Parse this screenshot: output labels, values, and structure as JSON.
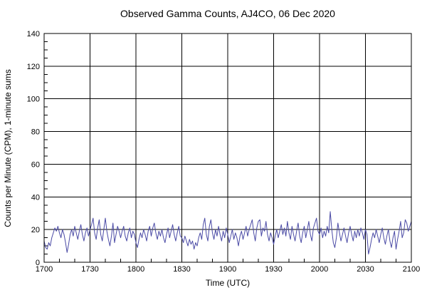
{
  "title": "Observed Gamma Counts, AJ4CO, 06 Dec 2020",
  "colors": {
    "background": "#ffffff",
    "line": "#4a4aa5",
    "grid": "#000000",
    "text": "#000000"
  },
  "chart_data": {
    "type": "line",
    "title": "Observed Gamma Counts, AJ4CO, 06 Dec 2020",
    "xlabel": "Time (UTC)",
    "ylabel": "Counts per Minute (CPM), 1-minute sums",
    "legend_position": "none",
    "grid": true,
    "line_color": "#4a4aa5",
    "grid_color": "#000000",
    "ylim": [
      0,
      140
    ],
    "y_ticks": [
      0,
      20,
      40,
      60,
      80,
      100,
      120,
      140
    ],
    "y_minor_step": 5,
    "xlim_minutes": [
      0,
      240
    ],
    "x_major_step_min": 30,
    "x_minor_step_min": 10,
    "x_tick_labels": [
      "1700",
      "1730",
      "1800",
      "1830",
      "1900",
      "1930",
      "2000",
      "2030",
      "2100"
    ],
    "series": [
      {
        "name": "gamma_counts_cpm",
        "start_time_utc": "1700",
        "step_minutes": 1,
        "values": [
          13,
          9,
          8,
          12,
          10,
          15,
          18,
          21,
          19,
          22,
          18,
          15,
          20,
          17,
          12,
          6,
          11,
          17,
          20,
          16,
          22,
          18,
          14,
          19,
          23,
          17,
          13,
          18,
          21,
          16,
          20,
          23,
          27,
          18,
          14,
          21,
          26,
          17,
          13,
          20,
          27,
          19,
          14,
          10,
          16,
          24,
          12,
          17,
          22,
          19,
          15,
          19,
          22,
          16,
          13,
          18,
          21,
          15,
          19,
          17,
          12,
          9,
          14,
          18,
          15,
          20,
          17,
          13,
          19,
          22,
          16,
          21,
          24,
          18,
          14,
          19,
          16,
          20,
          15,
          12,
          17,
          21,
          15,
          19,
          23,
          17,
          13,
          18,
          22,
          16,
          15,
          12,
          16,
          13,
          10,
          14,
          11,
          13,
          8,
          12,
          10,
          15,
          18,
          14,
          23,
          27,
          17,
          13,
          22,
          26,
          18,
          14,
          20,
          16,
          22,
          17,
          13,
          19,
          15,
          21,
          17,
          12,
          16,
          20,
          14,
          18,
          15,
          10,
          16,
          19,
          14,
          18,
          22,
          16,
          20,
          23,
          26,
          18,
          13,
          21,
          25,
          26,
          16,
          21,
          19,
          25,
          17,
          13,
          18,
          15,
          11,
          16,
          20,
          15,
          19,
          23,
          17,
          21,
          16,
          25,
          18,
          14,
          22,
          17,
          13,
          19,
          24,
          16,
          12,
          18,
          22,
          15,
          20,
          25,
          17,
          13,
          21,
          24,
          27,
          19,
          17,
          21,
          15,
          19,
          16,
          22,
          18,
          31,
          20,
          12,
          9,
          15,
          24,
          18,
          13,
          17,
          21,
          16,
          12,
          18,
          22,
          17,
          13,
          19,
          15,
          20,
          16,
          21,
          18,
          14,
          20,
          17,
          5,
          9,
          14,
          18,
          15,
          20,
          16,
          12,
          17,
          21,
          15,
          11,
          16,
          20,
          13,
          9,
          15,
          19,
          8,
          14,
          19,
          25,
          15,
          18,
          26,
          24,
          19,
          22,
          25
        ]
      }
    ]
  }
}
